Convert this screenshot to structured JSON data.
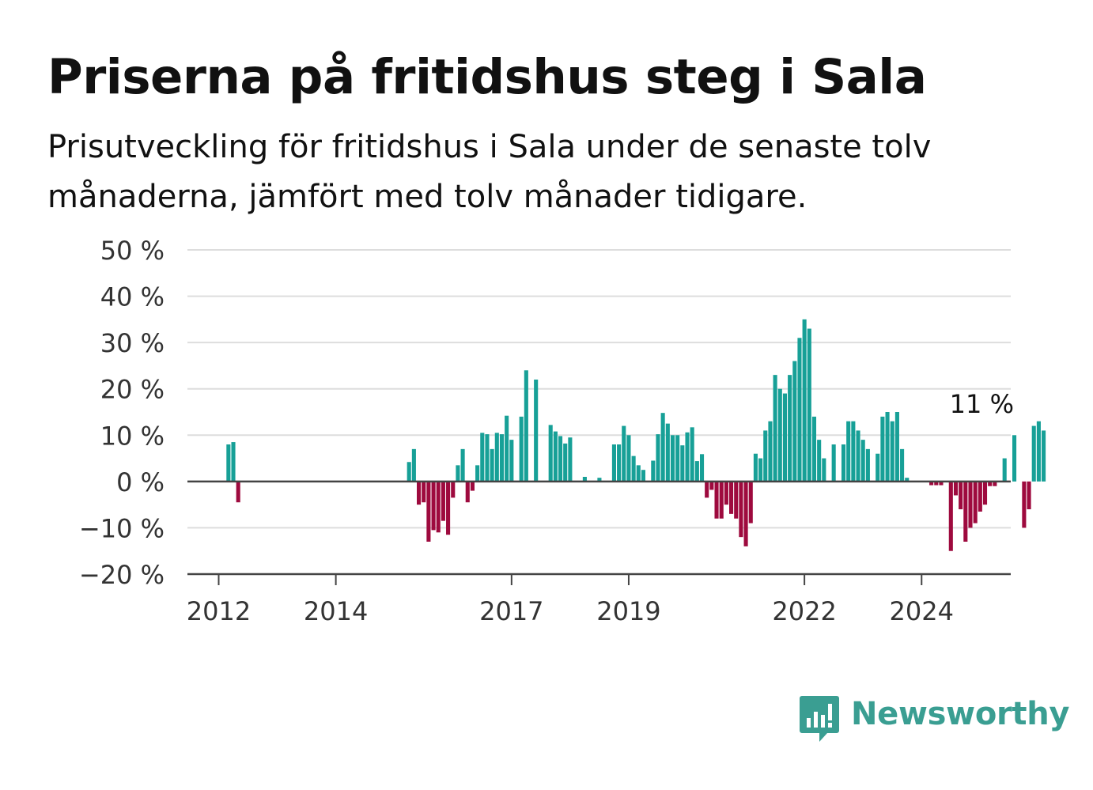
{
  "title": "Priserna på fritidshus steg i Sala",
  "subtitle": "Prisutveckling för fritidshus i Sala under de senaste tolv månaderna, jämfört med tolv månader tidigare.",
  "brand": {
    "name": "Newsworthy",
    "icon": "newsworthy-logo-icon",
    "color": "#3a9e92"
  },
  "chart_data": {
    "type": "bar",
    "title": "Priserna på fritidshus steg i Sala",
    "subtitle": "Prisutveckling för fritidshus i Sala under de senaste tolv månaderna, jämfört med tolv månader tidigare.",
    "xlabel": "",
    "ylabel": "",
    "ylim": [
      -20,
      50
    ],
    "yticks": [
      -20,
      -10,
      0,
      10,
      20,
      30,
      40,
      50
    ],
    "ytick_labels": [
      "−20 %",
      "−10 %",
      "0 %",
      "10 %",
      "20 %",
      "30 %",
      "40 %",
      "50 %"
    ],
    "xticks": [
      2012,
      2014,
      2017,
      2019,
      2022,
      2024
    ],
    "xtick_labels": [
      "2012",
      "2014",
      "2017",
      "2019",
      "2022",
      "2024"
    ],
    "grid": true,
    "colors": {
      "positive": "#17a097",
      "negative": "#9e0a3e",
      "grid": "#dddddd",
      "axis": "#444444"
    },
    "start": "2012-01",
    "annotation": {
      "text": "11 %",
      "month": "2025-01",
      "value": 11
    },
    "series": [
      {
        "values": [
          null,
          null,
          8,
          8.5,
          -4.5,
          null,
          null,
          null,
          null,
          null,
          null,
          null,
          null,
          null,
          null,
          null,
          null,
          null,
          null,
          null,
          null,
          null,
          null,
          null,
          null,
          null,
          null,
          null,
          null,
          null,
          null,
          null,
          null,
          null,
          null,
          null,
          null,
          null,
          null,
          4.2,
          7,
          -5,
          -4.5,
          -13,
          -10.5,
          -11,
          -8.5,
          -11.5,
          -3.5,
          3.5,
          7,
          -4.5,
          -2,
          3.5,
          10.5,
          10.2,
          7,
          10.5,
          10.2,
          14.2,
          9,
          null,
          14,
          24,
          null,
          22,
          null,
          null,
          12.2,
          10.8,
          9.8,
          8.2,
          9.5,
          null,
          null,
          1,
          null,
          null,
          0.8,
          null,
          null,
          8,
          8,
          12,
          10,
          5.5,
          3.5,
          2.5,
          null,
          4.5,
          10.2,
          14.8,
          12.5,
          10,
          10,
          7.8,
          10.6,
          11.7,
          4.4,
          5.9,
          -3.5,
          -1.8,
          -8,
          -8,
          -5,
          -7,
          -8,
          -12,
          -14,
          -9,
          6,
          5,
          11,
          13,
          23,
          20,
          19,
          23,
          26,
          31,
          35,
          33,
          14,
          9,
          5,
          null,
          8,
          null,
          8,
          13,
          13,
          11,
          9,
          7,
          null,
          6,
          14,
          15,
          13,
          15,
          7,
          0.8,
          null,
          null,
          null,
          null,
          -0.8,
          -0.8,
          -0.8,
          null,
          -15,
          -3,
          -6,
          -13,
          -10,
          -9,
          -6.5,
          -5,
          -1,
          -1,
          null,
          5,
          null,
          10,
          null,
          -10,
          -6,
          12,
          13,
          11
        ]
      }
    ]
  }
}
